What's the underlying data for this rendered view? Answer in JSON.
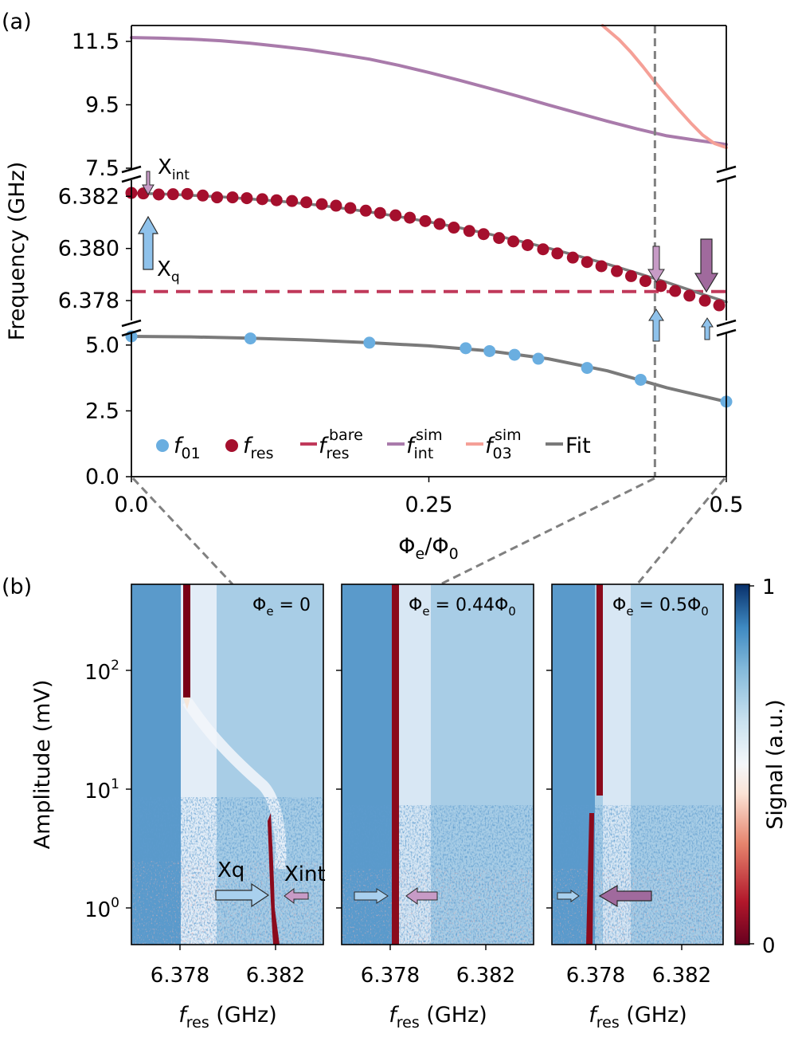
{
  "panel_labels": {
    "a": "(a)",
    "b": "(b)"
  },
  "colors": {
    "f01": "#6aaee0",
    "fres": "#a50f2d",
    "bare": "#c0395a",
    "int": "#a97bab",
    "f03": "#f5a097",
    "fit": "#7a7a7a",
    "guide": "#808080"
  },
  "chart_data": [
    {
      "id": "panel-a",
      "type": "scatter",
      "title": "",
      "xlabel": "Φe/Φ0",
      "ylabel": "Frequency (GHz)",
      "xlim": [
        0,
        0.5
      ],
      "x_ticks": [
        "0.0",
        "0.25",
        "0.5"
      ],
      "x_tick_values": [
        0,
        0.25,
        0.5
      ],
      "marker_line_x": 0.44,
      "segments": {
        "top": {
          "ylim": [
            7.5,
            12.0
          ],
          "ticks": [
            7.5,
            9.5,
            11.5
          ],
          "tick_labels": [
            "7.5",
            "9.5",
            "11.5"
          ],
          "series": {
            "f_int_sim": {
              "x": [
                0,
                0.025,
                0.05,
                0.075,
                0.1,
                0.125,
                0.15,
                0.175,
                0.2,
                0.225,
                0.25,
                0.275,
                0.3,
                0.325,
                0.35,
                0.375,
                0.4,
                0.425,
                0.45,
                0.475,
                0.5
              ],
              "y": [
                11.62,
                11.6,
                11.57,
                11.52,
                11.44,
                11.34,
                11.23,
                11.09,
                10.94,
                10.74,
                10.52,
                10.28,
                10.03,
                9.77,
                9.5,
                9.24,
                8.98,
                8.74,
                8.52,
                8.38,
                8.25
              ]
            },
            "f_03_sim": {
              "x": [
                0.396,
                0.41,
                0.42,
                0.43,
                0.44,
                0.45,
                0.46,
                0.47,
                0.48,
                0.49,
                0.5
              ],
              "y": [
                12.0,
                11.55,
                11.15,
                10.7,
                10.22,
                9.78,
                9.35,
                8.93,
                8.55,
                8.28,
                8.15
              ]
            }
          }
        },
        "mid": {
          "ylim": [
            6.37724,
            6.38262
          ],
          "ticks": [
            6.378,
            6.38,
            6.382
          ],
          "tick_labels": [
            "6.378",
            "6.380",
            "6.382"
          ],
          "bare_value": 6.37835,
          "series": {
            "f_res": {
              "x": [
                0,
                0.01,
                0.023,
                0.035,
                0.047,
                0.06,
                0.072,
                0.085,
                0.097,
                0.11,
                0.122,
                0.135,
                0.147,
                0.16,
                0.172,
                0.184,
                0.197,
                0.209,
                0.222,
                0.234,
                0.247,
                0.259,
                0.271,
                0.284,
                0.296,
                0.309,
                0.321,
                0.333,
                0.346,
                0.358,
                0.371,
                0.383,
                0.395,
                0.408,
                0.42,
                0.432,
                0.445,
                0.457,
                0.469,
                0.482,
                0.494
              ],
              "y": [
                6.38213,
                6.38211,
                6.38207,
                6.38208,
                6.38209,
                6.38203,
                6.38196,
                6.38196,
                6.38193,
                6.38189,
                6.38185,
                6.38182,
                6.38177,
                6.3817,
                6.38164,
                6.38155,
                6.38145,
                6.38136,
                6.38127,
                6.38118,
                6.38105,
                6.38094,
                6.3808,
                6.38067,
                6.38055,
                6.3804,
                6.38027,
                6.38013,
                6.37997,
                6.37981,
                6.37965,
                6.37948,
                6.37932,
                6.37913,
                6.37894,
                6.37875,
                6.37856,
                6.37837,
                6.37819,
                6.378,
                6.37782
              ]
            },
            "fit_res": {
              "x": [
                0,
                0.025,
                0.05,
                0.075,
                0.1,
                0.125,
                0.15,
                0.175,
                0.2,
                0.225,
                0.25,
                0.275,
                0.3,
                0.325,
                0.35,
                0.375,
                0.4,
                0.425,
                0.45,
                0.475,
                0.5
              ],
              "y": [
                6.38212,
                6.38209,
                6.38204,
                6.38198,
                6.3819,
                6.38181,
                6.3817,
                6.38156,
                6.3814,
                6.38122,
                6.38102,
                6.3808,
                6.38056,
                6.3803,
                6.38002,
                6.37972,
                6.3794,
                6.37906,
                6.3787,
                6.37832,
                6.37795
              ]
            }
          }
        },
        "bottom": {
          "ylim": [
            0,
            5.45
          ],
          "ticks": [
            0,
            2.5,
            5.0
          ],
          "tick_labels": [
            "0.0",
            "2.5",
            "5.0"
          ],
          "series": {
            "f_01": {
              "x": [
                0,
                0.1,
                0.2,
                0.281,
                0.301,
                0.322,
                0.342,
                0.383,
                0.428,
                0.5
              ],
              "y": [
                5.33,
                5.25,
                5.09,
                4.88,
                4.77,
                4.63,
                4.48,
                4.13,
                3.68,
                2.85
              ]
            },
            "fit_01": {
              "x": [
                0,
                0.05,
                0.1,
                0.15,
                0.2,
                0.25,
                0.3,
                0.35,
                0.4,
                0.45,
                0.5
              ],
              "y": [
                5.33,
                5.31,
                5.26,
                5.19,
                5.09,
                4.97,
                4.78,
                4.48,
                4.02,
                3.38,
                2.85
              ]
            }
          }
        }
      },
      "legend": [
        "f01",
        "fres",
        "fresbare",
        "fintsim",
        "f03sim",
        "Fit"
      ],
      "annotations": {
        "xint": "Xint",
        "xq": "Xq"
      }
    },
    {
      "id": "panel-b",
      "type": "heatmap",
      "xlabel": "fres (GHz)",
      "ylabel": "Amplitude (mV)",
      "colorbar_label": "Signal (a.u.)",
      "colorbar_ticks": [
        "0",
        "1"
      ],
      "x_ticks": [
        "6.378",
        "6.382"
      ],
      "x_tick_values": [
        6.378,
        6.382
      ],
      "y_ticks": [
        {
          "base": "10",
          "exp": "2"
        },
        {
          "base": "10",
          "exp": "1"
        },
        {
          "base": "10",
          "exp": "0"
        }
      ],
      "panels": [
        {
          "label_main": "Φe = 0",
          "annotation_xq": "Xq",
          "annotation_xint": "Xint"
        },
        {
          "label_main": "Φe = 0.44Φ0"
        },
        {
          "label_main": "Φe = 0.5Φ0"
        }
      ]
    }
  ],
  "legend_text": {
    "f01_main": "f",
    "f01_sub": "01",
    "fres_main": "f",
    "fres_sub": "res",
    "bare_main": "f",
    "bare_sub": "res",
    "bare_sup": "bare",
    "int_main": "f",
    "int_sub": "int",
    "int_sup": "sim",
    "f03_main": "f",
    "f03_sub": "03",
    "f03_sup": "sim",
    "fit": "Fit"
  },
  "axis_text": {
    "a_ylabel": "Frequency (GHz)",
    "a_xlabel_phi1": "Φ",
    "a_xlabel_e": "e",
    "a_xlabel_slash": "/Φ",
    "a_xlabel_0": "0",
    "b_ylabel": "Amplitude (mV)",
    "b_xlabel_f": "f",
    "b_xlabel_sub": "res",
    "b_xlabel_rest": " (GHz)",
    "cbar_label": "Signal (a.u.)",
    "xint_main": "X",
    "xint_sub": "int",
    "xq_main": "X",
    "xq_sub": "q"
  },
  "heat_labels": [
    {
      "pre": "Φ",
      "sub": "e",
      "post": " = 0",
      "sub2": ""
    },
    {
      "pre": "Φ",
      "sub": "e",
      "post": " = 0.44Φ",
      "sub2": "0"
    },
    {
      "pre": "Φ",
      "sub": "e",
      "post": " = 0.5Φ",
      "sub2": "0"
    }
  ]
}
